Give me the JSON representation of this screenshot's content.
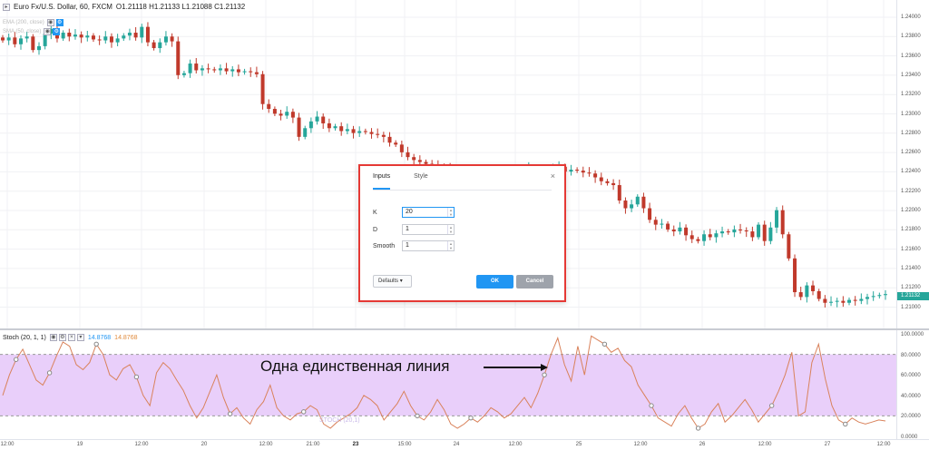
{
  "chart": {
    "symbol": "Euro Fx/U.S. Dollar, 60, FXCM",
    "ohlc": {
      "o": "O1.21118",
      "h": "H1.21133",
      "l": "L1.21088",
      "c": "C1.21132"
    },
    "ma1": "EMA (200, close)",
    "ma2": "SMA (50, close)",
    "last_price": "1.21132"
  },
  "price_axis": [
    "1.24000",
    "1.23800",
    "1.23600",
    "1.23400",
    "1.23200",
    "1.23000",
    "1.22800",
    "1.22600",
    "1.22400",
    "1.22200",
    "1.22000",
    "1.21800",
    "1.21600",
    "1.21400",
    "1.21200",
    "1.21000"
  ],
  "stoch_axis": [
    "100.0000",
    "80.0000",
    "60.0000",
    "40.0000",
    "20.0000",
    "0.0000"
  ],
  "time_axis": [
    {
      "label": "12:00",
      "bold": false
    },
    {
      "label": "19",
      "bold": false
    },
    {
      "label": "12:00",
      "bold": false
    },
    {
      "label": "20",
      "bold": false
    },
    {
      "label": "12:00",
      "bold": false
    },
    {
      "label": "21:00",
      "bold": false
    },
    {
      "label": "23",
      "bold": true
    },
    {
      "label": "15:00",
      "bold": false
    },
    {
      "label": "24",
      "bold": false
    },
    {
      "label": "12:00",
      "bold": false
    },
    {
      "label": "25",
      "bold": false
    },
    {
      "label": "12:00",
      "bold": false
    },
    {
      "label": "26",
      "bold": false
    },
    {
      "label": "12:00",
      "bold": false
    },
    {
      "label": "27",
      "bold": false
    },
    {
      "label": "12:00",
      "bold": false
    }
  ],
  "stoch": {
    "title": "Stoch (20, 1, 1)",
    "k_value": "14.8768",
    "d_value": "14.8768",
    "upper_band": 80,
    "lower_band": 20,
    "band_color": "#e9cffa",
    "line_color": "#d9825b",
    "inner_label": "STOCH (20,1)"
  },
  "colors": {
    "up": "#26a69a",
    "down": "#c0392b",
    "accent": "#2196f3",
    "dialog_border": "#e53935"
  },
  "dialog": {
    "tabs": [
      "Inputs",
      "Style"
    ],
    "close_icon": "×",
    "fields": [
      {
        "label": "K",
        "value": "20"
      },
      {
        "label": "D",
        "value": "1"
      },
      {
        "label": "Smooth",
        "value": "1"
      }
    ],
    "defaults_label": "Defaults",
    "ok_label": "OK",
    "cancel_label": "Cancel"
  },
  "annotation": {
    "text": "Одна единственная линия"
  }
}
